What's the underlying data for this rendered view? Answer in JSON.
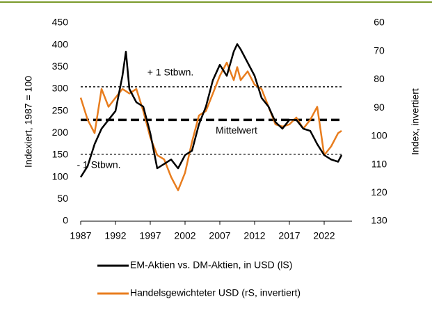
{
  "chart_data": {
    "type": "line",
    "y_label": "Indexiert, 1987 = 100",
    "y2_label": "Index, invertiert",
    "x": [
      1987,
      1988,
      1989,
      1990,
      1991,
      1992,
      1993,
      1993.5,
      1994,
      1995,
      1996,
      1997,
      1998,
      1999,
      2000,
      2001,
      2002,
      2003,
      2004,
      2005,
      2006,
      2007,
      2008,
      2009,
      2009.5,
      2010,
      2011,
      2012,
      2013,
      2014,
      2015,
      2016,
      2017,
      2018,
      2019,
      2020,
      2021,
      2022,
      2023,
      2024,
      2024.5
    ],
    "series": [
      {
        "name": "EM-Aktien vs. DM-Aktien, in USD (lS)",
        "color": "#000000",
        "axis": "y",
        "values": [
          100,
          125,
          175,
          210,
          230,
          250,
          330,
          385,
          300,
          270,
          260,
          200,
          120,
          130,
          140,
          120,
          150,
          160,
          220,
          260,
          320,
          355,
          330,
          385,
          402,
          390,
          360,
          330,
          280,
          260,
          225,
          210,
          230,
          230,
          210,
          205,
          175,
          150,
          140,
          135,
          150
        ]
      },
      {
        "name": "Handelsgewichteter USD (rS, invertiert)",
        "color": "#e87d1e",
        "axis": "y2",
        "values": [
          86.4,
          94.2,
          98.9,
          83.3,
          89.6,
          86.4,
          83.3,
          84.1,
          84.9,
          83.3,
          91.1,
          100.4,
          106.7,
          108.2,
          114.4,
          119.1,
          112.9,
          102,
          92.7,
          91.1,
          84.9,
          78.7,
          74,
          80.2,
          75.6,
          80.2,
          77.1,
          81.8,
          83.3,
          89.6,
          95.8,
          96.6,
          95.8,
          93.4,
          97.3,
          94.2,
          89.6,
          106.7,
          103.6,
          98.9,
          98.1
        ]
      }
    ],
    "reference_lines": [
      {
        "value": 305,
        "label": "+ 1 Stbwn.",
        "style": "dotted"
      },
      {
        "value": 230,
        "label": "Mittelwert",
        "style": "dashed"
      },
      {
        "value": 152,
        "label": "- 1 Stbwn.",
        "style": "dotted"
      }
    ],
    "xlim": [
      1987,
      2026
    ],
    "xticks": [
      1987,
      1992,
      1997,
      2002,
      2007,
      2012,
      2017,
      2022
    ],
    "ylim": [
      0,
      450
    ],
    "yticks": [
      0,
      50,
      100,
      150,
      200,
      250,
      300,
      350,
      400,
      450
    ],
    "y2lim": [
      130,
      60
    ],
    "y2ticks": [
      130,
      120,
      110,
      100,
      90,
      80,
      70,
      60
    ],
    "grid": false
  }
}
